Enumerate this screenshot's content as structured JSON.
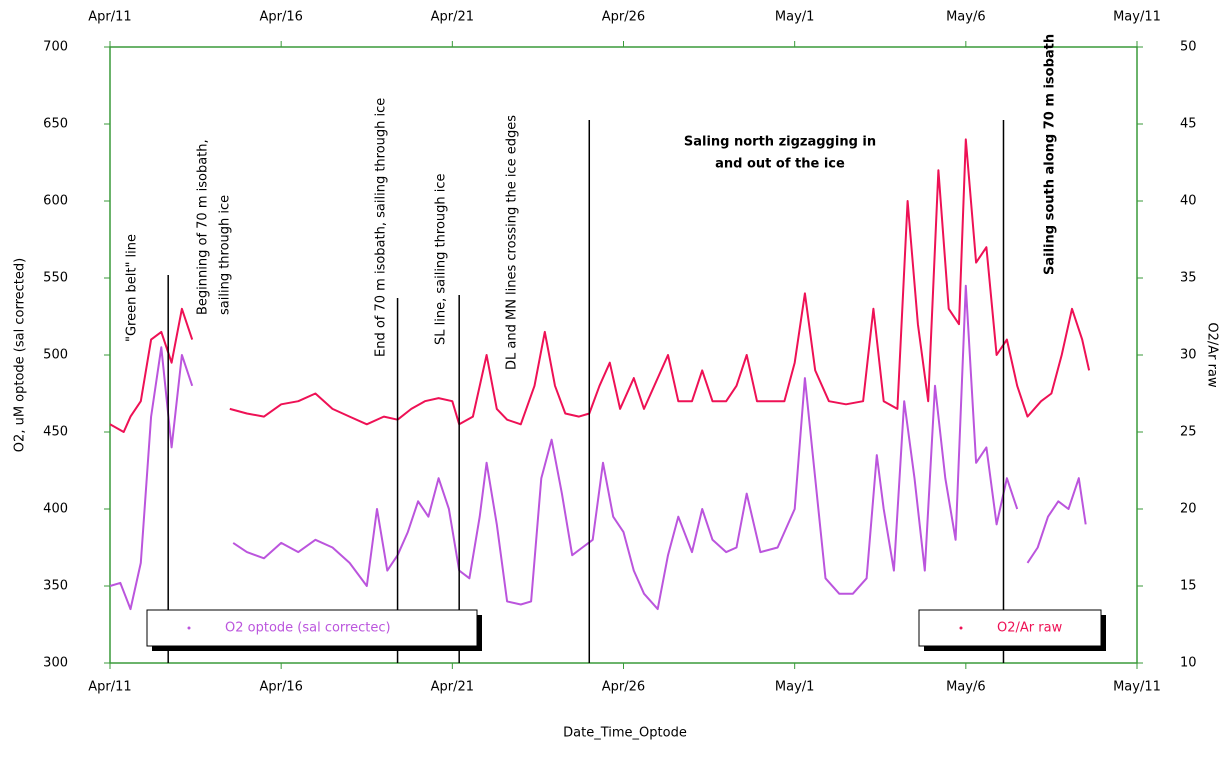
{
  "chart_data": {
    "type": "line",
    "y_label": "O2, uM optode (sal corrected)",
    "y2_label": "O2/Ar raw",
    "x_label": "Date_Time_Optode",
    "xlim": [
      0,
      30
    ],
    "xticks": [
      {
        "value": 0,
        "label": "Apr/11"
      },
      {
        "value": 5,
        "label": "Apr/16"
      },
      {
        "value": 10,
        "label": "Apr/21"
      },
      {
        "value": 15,
        "label": "Apr/26"
      },
      {
        "value": 20,
        "label": "May/1"
      },
      {
        "value": 25,
        "label": "May/6"
      },
      {
        "value": 30,
        "label": "May/11"
      }
    ],
    "ylim": [
      300,
      700
    ],
    "yticks": [
      300,
      350,
      400,
      450,
      500,
      550,
      600,
      650,
      700
    ],
    "y2lim": [
      10,
      50
    ],
    "y2ticks": [
      10,
      15,
      20,
      25,
      30,
      35,
      40,
      45,
      50
    ],
    "series": [
      {
        "name": "O2 optode (sal correctec)",
        "color": "#bb55dd",
        "axis": "y",
        "x": [
          0,
          0.3,
          0.6,
          0.9,
          1.2,
          1.5,
          1.8,
          2.1,
          2.4,
          3.0,
          3.6,
          4.0,
          4.5,
          5.0,
          5.5,
          6.0,
          6.5,
          7.0,
          7.5,
          7.8,
          8.1,
          8.4,
          8.7,
          9.0,
          9.3,
          9.6,
          9.9,
          10.2,
          10.5,
          10.8,
          11.0,
          11.3,
          11.6,
          12.0,
          12.3,
          12.6,
          12.9,
          13.2,
          13.5,
          13.8,
          14.1,
          14.4,
          14.7,
          15.0,
          15.3,
          15.6,
          16.0,
          16.3,
          16.6,
          17.0,
          17.3,
          17.6,
          18.0,
          18.3,
          18.6,
          19.0,
          19.5,
          20.0,
          20.3,
          20.6,
          20.9,
          21.3,
          21.7,
          22.1,
          22.4,
          22.6,
          22.9,
          23.2,
          23.5,
          23.8,
          24.1,
          24.4,
          24.7,
          25.0,
          25.3,
          25.6,
          25.9,
          26.2,
          26.5,
          26.6,
          26.8,
          27.1,
          27.4,
          27.7,
          28.0,
          28.3,
          28.5
        ],
        "values": [
          350,
          352,
          335,
          365,
          460,
          505,
          440,
          500,
          480,
          null,
          378,
          372,
          368,
          378,
          372,
          380,
          375,
          365,
          350,
          400,
          360,
          370,
          385,
          405,
          395,
          420,
          400,
          360,
          355,
          395,
          430,
          390,
          340,
          338,
          340,
          420,
          445,
          410,
          370,
          375,
          380,
          430,
          395,
          385,
          360,
          345,
          335,
          370,
          395,
          372,
          400,
          380,
          372,
          375,
          410,
          372,
          375,
          400,
          485,
          420,
          355,
          345,
          345,
          355,
          435,
          400,
          360,
          470,
          420,
          360,
          480,
          420,
          380,
          545,
          430,
          440,
          390,
          420,
          400,
          null,
          365,
          375,
          395,
          405,
          400,
          420,
          390
        ]
      },
      {
        "name": "O2/Ar raw",
        "color": "#ee1155",
        "axis": "y2",
        "x": [
          0,
          0.4,
          0.6,
          0.9,
          1.2,
          1.5,
          1.8,
          2.1,
          2.4,
          3.0,
          3.5,
          4.0,
          4.5,
          5.0,
          5.5,
          6.0,
          6.5,
          7.0,
          7.5,
          8.0,
          8.4,
          8.8,
          9.2,
          9.6,
          10.0,
          10.2,
          10.6,
          11.0,
          11.3,
          11.6,
          12.0,
          12.4,
          12.7,
          13.0,
          13.3,
          13.7,
          14.0,
          14.3,
          14.6,
          14.9,
          15.3,
          15.6,
          16.0,
          16.3,
          16.6,
          17.0,
          17.3,
          17.6,
          18.0,
          18.3,
          18.6,
          18.9,
          19.3,
          19.7,
          20.0,
          20.3,
          20.6,
          21.0,
          21.5,
          22.0,
          22.3,
          22.6,
          23.0,
          23.3,
          23.6,
          23.9,
          24.2,
          24.5,
          24.8,
          25.0,
          25.3,
          25.6,
          25.9,
          26.2,
          26.5,
          26.8,
          27.2,
          27.5,
          27.8,
          28.1,
          28.4,
          28.6
        ],
        "values": [
          25.5,
          25,
          26,
          27,
          31,
          31.5,
          29.5,
          33,
          31,
          null,
          26.5,
          26.2,
          26,
          26.8,
          27,
          27.5,
          26.5,
          26,
          25.5,
          26,
          25.8,
          26.5,
          27,
          27.2,
          27,
          25.5,
          26,
          30,
          26.5,
          25.8,
          25.5,
          28,
          31.5,
          28,
          26.2,
          26,
          26.2,
          28,
          29.5,
          26.5,
          28.5,
          26.5,
          28.5,
          30,
          27,
          27,
          29,
          27,
          27,
          28,
          30,
          27,
          27,
          27,
          29.5,
          34,
          29,
          27,
          26.8,
          27,
          33,
          27,
          26.5,
          40,
          32,
          27,
          42,
          33,
          32,
          44,
          36,
          37,
          30,
          31,
          28,
          26,
          27,
          27.5,
          30,
          33,
          31,
          29
        ]
      }
    ],
    "event_lines": [
      1.7,
      8.4,
      10.2,
      14.0,
      26.1
    ],
    "annotations": [
      [
        "\"Green belt\" line"
      ],
      [
        "Beginning of 70 m isobath,",
        "sailing through ice"
      ],
      [
        "End of 70 m isobath, sailing through ice"
      ],
      [
        "SL line, sailing through ice"
      ],
      [
        "DL and MN lines crossing the ice edges"
      ],
      [
        "Saling north zigzagging in",
        "and out of the ice"
      ],
      [
        "Sailing south along 70 m isobath"
      ]
    ]
  }
}
